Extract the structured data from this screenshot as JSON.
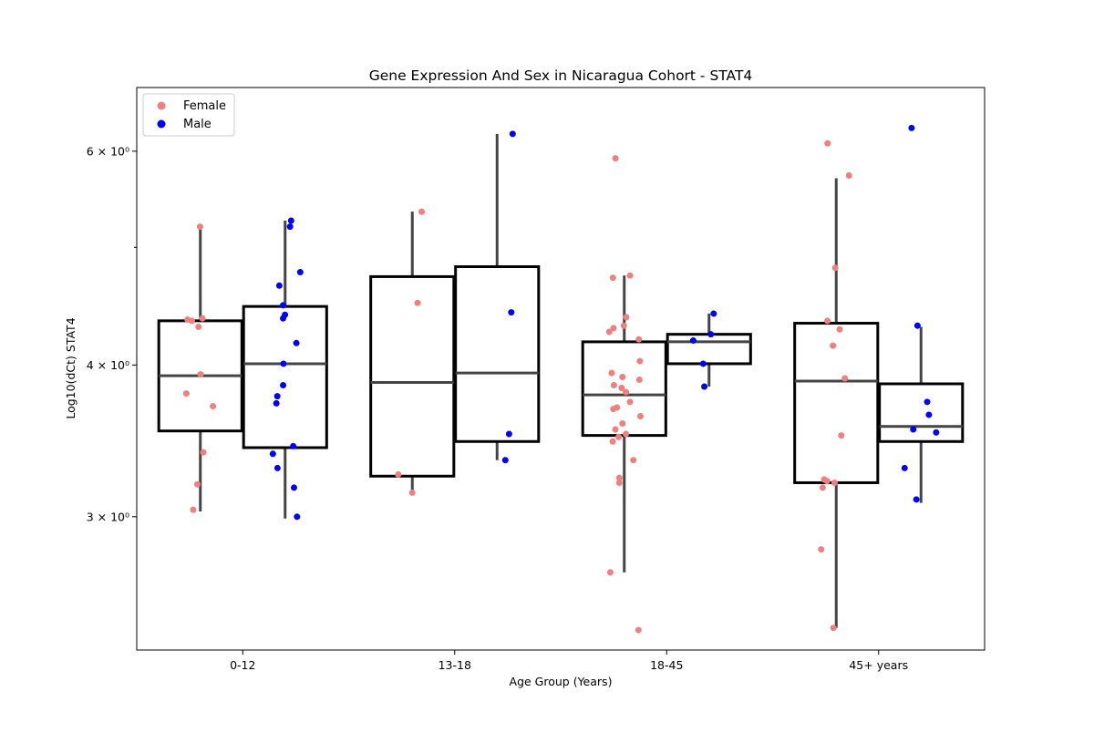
{
  "chart_data": {
    "type": "box",
    "title": "Gene Expression And Sex in Nicaragua Cohort - STAT4",
    "xlabel": "Age Group (Years)",
    "ylabel": "Log10(dCt) STAT4",
    "categories": [
      "0-12",
      "13-18",
      "18-45",
      "45+ years"
    ],
    "y_scale": "log",
    "ylim": [
      2.33,
      6.77
    ],
    "y_ticks": [
      {
        "value": 3,
        "label": "3 × 10⁰"
      },
      {
        "value": 4,
        "label": "4 × 10⁰"
      },
      {
        "value": 6,
        "label": "6 × 10⁰"
      }
    ],
    "y_minor_ticks": [
      5
    ],
    "legend": {
      "position": "top-left",
      "entries": [
        "Female",
        "Male"
      ]
    },
    "grid": false,
    "series": [
      {
        "name": "Female",
        "color": "#f08080",
        "boxes": [
          {
            "category": "0-12",
            "whislo": 3.03,
            "q1": 3.53,
            "median": 3.92,
            "q3": 4.35,
            "whishi": 5.2,
            "points": [
              5.2,
              4.37,
              4.36,
              4.35,
              4.3,
              3.93,
              3.79,
              3.7,
              3.39,
              3.19,
              3.04
            ]
          },
          {
            "category": "13-18",
            "whislo": 3.15,
            "q1": 3.24,
            "median": 3.87,
            "q3": 4.73,
            "whishi": 5.35,
            "points": [
              5.35,
              4.5,
              3.25,
              3.14
            ]
          },
          {
            "category": "18-45",
            "whislo": 2.7,
            "q1": 3.5,
            "median": 3.78,
            "q3": 4.18,
            "whishi": 4.74,
            "points": [
              5.92,
              4.74,
              4.72,
              4.38,
              4.31,
              4.29,
              4.26,
              4.2,
              4.03,
              3.94,
              3.91,
              3.89,
              3.85,
              3.83,
              3.8,
              3.73,
              3.69,
              3.68,
              3.63,
              3.58,
              3.54,
              3.51,
              3.49,
              3.46,
              3.34,
              3.23,
              3.2,
              2.7,
              2.42
            ]
          },
          {
            "category": "45+ years",
            "whislo": 2.43,
            "q1": 3.2,
            "median": 3.88,
            "q3": 4.33,
            "whishi": 5.7,
            "points": [
              6.09,
              5.73,
              4.81,
              4.35,
              4.28,
              4.15,
              3.9,
              3.5,
              3.22,
              3.21,
              3.2,
              3.17,
              2.82,
              2.43
            ]
          }
        ]
      },
      {
        "name": "Male",
        "color": "#0000ff",
        "boxes": [
          {
            "category": "0-12",
            "whislo": 2.99,
            "q1": 3.42,
            "median": 4.01,
            "q3": 4.47,
            "whishi": 5.26,
            "points": [
              5.26,
              5.2,
              4.77,
              4.65,
              4.48,
              4.4,
              4.37,
              4.17,
              4.01,
              3.85,
              3.77,
              3.72,
              3.43,
              3.38,
              3.29,
              3.17,
              3.0
            ]
          },
          {
            "category": "13-18",
            "whislo": 3.34,
            "q1": 3.46,
            "median": 3.94,
            "q3": 4.82,
            "whishi": 6.2,
            "points": [
              6.2,
              4.42,
              3.51,
              3.34
            ]
          },
          {
            "category": "18-45",
            "whislo": 3.84,
            "q1": 4.01,
            "median": 4.18,
            "q3": 4.24,
            "whishi": 4.41,
            "points": [
              4.41,
              4.24,
              4.19,
              4.01,
              3.84
            ]
          },
          {
            "category": "45+ years",
            "whislo": 3.08,
            "q1": 3.46,
            "median": 3.56,
            "q3": 3.86,
            "whishi": 4.3,
            "points": [
              6.27,
              4.31,
              3.73,
              3.64,
              3.54,
              3.52,
              3.29,
              3.1
            ]
          }
        ]
      }
    ]
  }
}
